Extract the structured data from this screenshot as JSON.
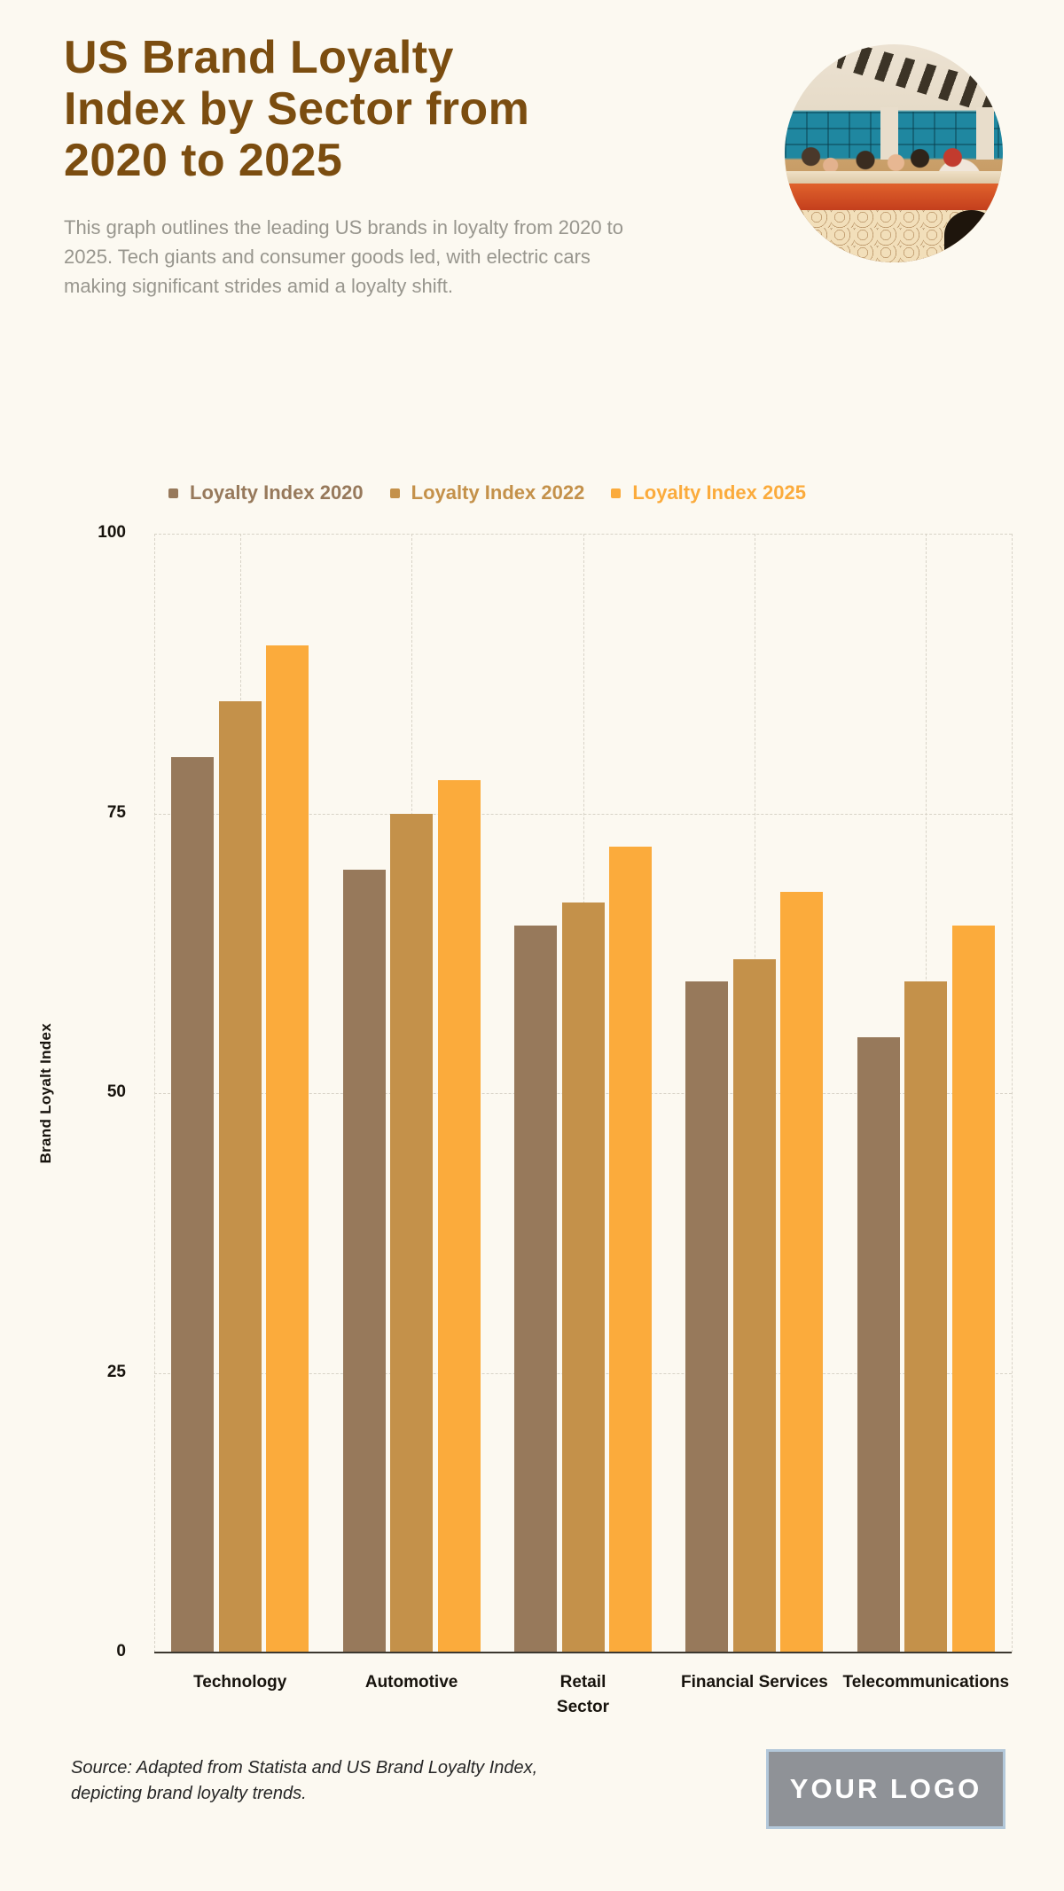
{
  "page": {
    "background": "#fcf9f1"
  },
  "header": {
    "title_lines": [
      "US Brand Loyalty",
      "Index by Sector from",
      "2020 to 2025"
    ],
    "title_color": "#7b4d10",
    "description": "This graph outlines the leading US brands in loyalty from 2020 to 2025. Tech giants and consumer goods led, with electric cars making significant strides amid a loyalty shift."
  },
  "chart_data": {
    "type": "bar",
    "title": "",
    "categories": [
      "Technology",
      "Automotive",
      "Retail Sector",
      "Financial Services",
      "Telecommunications"
    ],
    "categories_wrapped": [
      [
        "Technology"
      ],
      [
        "Automotive"
      ],
      [
        "Retail",
        "Sector"
      ],
      [
        "Financial Services"
      ],
      [
        "Telecommunications"
      ]
    ],
    "series": [
      {
        "name": "Loyalty Index 2020",
        "color": "#97795b",
        "values": [
          80,
          70,
          65,
          60,
          55
        ]
      },
      {
        "name": "Loyalty Index 2022",
        "color": "#c4914a",
        "values": [
          85,
          75,
          67,
          62,
          60
        ]
      },
      {
        "name": "Loyalty Index 2025",
        "color": "#fbab3c",
        "values": [
          90,
          78,
          72,
          68,
          65
        ]
      }
    ],
    "xlabel": "",
    "ylabel": "Brand Loyalt Index",
    "ylim": [
      0,
      100
    ],
    "yticks": [
      0,
      25,
      50,
      75,
      100
    ],
    "grid": "dashed",
    "legend_position": "top",
    "gridline_color": "#d8d3c7",
    "axis_color": "#3c382f"
  },
  "footer": {
    "source_lines": [
      "Source: Adapted from Statista and US Brand Loyalty Index,",
      "depicting brand loyalty trends."
    ],
    "logo_text": "YOUR LOGO"
  }
}
